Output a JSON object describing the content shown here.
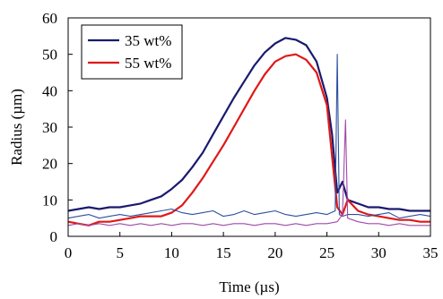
{
  "chart_data": {
    "type": "line",
    "title": "",
    "xlabel": "Time (µs)",
    "ylabel": "Radius (µm)",
    "xlim": [
      0,
      35
    ],
    "ylim": [
      0,
      60
    ],
    "xticks": [
      0,
      5,
      10,
      15,
      20,
      25,
      30,
      35
    ],
    "yticks": [
      0,
      10,
      20,
      30,
      40,
      50,
      60
    ],
    "grid": false,
    "legend_position": "top-left",
    "series": [
      {
        "name": "35 wt%",
        "color": "#1a1a6e",
        "x": [
          0,
          1,
          2,
          3,
          4,
          5,
          6,
          7,
          8,
          9,
          10,
          11,
          12,
          13,
          14,
          15,
          16,
          17,
          18,
          19,
          20,
          21,
          22,
          23,
          24,
          25,
          25.5,
          26,
          26.5,
          27,
          28,
          29,
          30,
          31,
          32,
          33,
          34,
          35
        ],
        "y": [
          7,
          7.5,
          8,
          7.5,
          8,
          8,
          8.5,
          9,
          10,
          11,
          13,
          15.5,
          19,
          23,
          28,
          33,
          38,
          42.5,
          47,
          50.5,
          53,
          54.5,
          54,
          52.5,
          48,
          38,
          28,
          12,
          15,
          10,
          9,
          8,
          8,
          7.5,
          7.5,
          7,
          7,
          7
        ]
      },
      {
        "name": "55 wt%",
        "color": "#e01818",
        "x": [
          0,
          1,
          2,
          3,
          4,
          5,
          6,
          7,
          8,
          9,
          10,
          11,
          12,
          13,
          14,
          15,
          16,
          17,
          18,
          19,
          20,
          21,
          22,
          23,
          24,
          25,
          25.5,
          26,
          26.5,
          27,
          28,
          29,
          30,
          31,
          32,
          33,
          34,
          35
        ],
        "y": [
          4,
          3.5,
          3,
          4,
          4,
          4.5,
          5,
          5.5,
          5.5,
          5.5,
          6.5,
          8.5,
          12,
          16,
          20.5,
          25,
          30,
          35,
          40,
          44.5,
          48,
          49.5,
          50,
          48.5,
          45,
          36,
          22,
          8,
          6,
          10,
          7,
          6,
          5.5,
          5,
          4.5,
          4.5,
          4,
          4
        ]
      },
      {
        "name": "",
        "color": "#2c4fa0",
        "x": [
          0,
          1,
          2,
          3,
          4,
          5,
          6,
          7,
          8,
          9,
          10,
          11,
          12,
          13,
          14,
          15,
          16,
          17,
          18,
          19,
          20,
          21,
          22,
          23,
          24,
          25,
          25.8,
          26,
          26.2,
          26.5,
          27,
          28,
          29,
          30,
          31,
          32,
          33,
          34,
          35
        ],
        "y": [
          5,
          5.5,
          6,
          5,
          5.5,
          6,
          5.5,
          6,
          6.5,
          7,
          7.5,
          6.5,
          6,
          6.5,
          7,
          5.5,
          6,
          7,
          6,
          6.5,
          7,
          6,
          5.5,
          6,
          6.5,
          6,
          7,
          50,
          6,
          5.5,
          6,
          6,
          5.5,
          6,
          6.5,
          5,
          5.5,
          6,
          5.5
        ]
      },
      {
        "name": "",
        "color": "#a04aa8",
        "x": [
          0,
          1,
          2,
          3,
          4,
          5,
          6,
          7,
          8,
          9,
          10,
          11,
          12,
          13,
          14,
          15,
          16,
          17,
          18,
          19,
          20,
          21,
          22,
          23,
          24,
          25,
          26,
          26.5,
          26.8,
          27,
          28,
          29,
          30,
          31,
          32,
          33,
          34,
          35
        ],
        "y": [
          3,
          3.5,
          3,
          3.5,
          3,
          3.5,
          3,
          3.5,
          3,
          3.5,
          3,
          3.5,
          3.5,
          3,
          3.5,
          3,
          3.5,
          3.5,
          3,
          3.5,
          3.5,
          3,
          3.5,
          3,
          3.5,
          3.5,
          4,
          6,
          32,
          5,
          4,
          3.5,
          3.5,
          3,
          3.5,
          3,
          3,
          3
        ]
      }
    ],
    "legend": [
      "35 wt%",
      "55 wt%"
    ]
  }
}
